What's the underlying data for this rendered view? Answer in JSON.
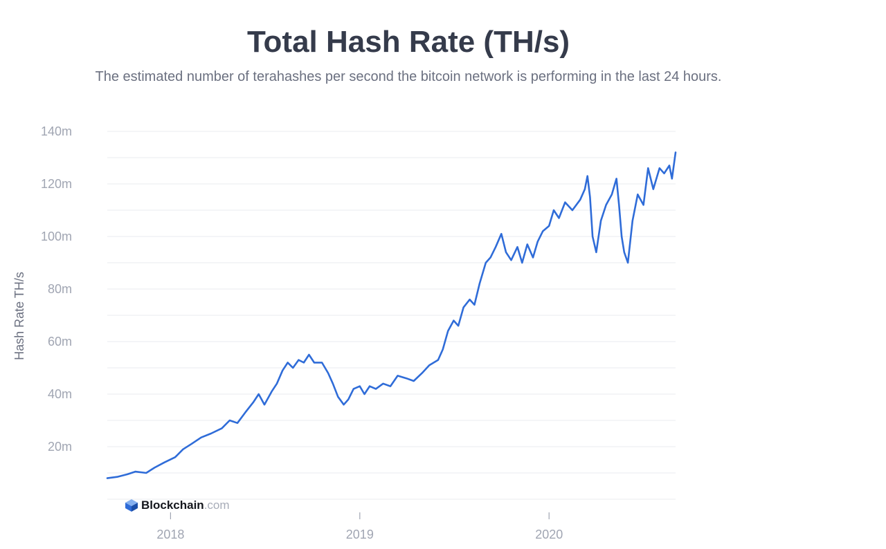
{
  "chart_data": {
    "type": "line",
    "title": "Total Hash Rate (TH/s)",
    "subtitle": "The estimated number of terahashes per second the bitcoin network is performing in the last 24 hours.",
    "ylabel": "Hash Rate TH/s",
    "xlabel": "",
    "ylim": [
      0,
      140
    ],
    "y_ticks": [
      20,
      40,
      60,
      80,
      100,
      120,
      140
    ],
    "y_tick_labels": [
      "20m",
      "40m",
      "60m",
      "80m",
      "100m",
      "120m",
      "140m"
    ],
    "x_ticks": [
      "2018-01-01",
      "2019-01-01",
      "2020-01-01"
    ],
    "x_tick_labels": [
      "2018",
      "2019",
      "2020"
    ],
    "xlim": [
      "2017-09-01",
      "2020-09-01"
    ],
    "grid": "horizontal",
    "line_color": "#2f6cd8",
    "series": [
      {
        "name": "",
        "points": [
          [
            "2017-09-01",
            8
          ],
          [
            "2017-09-20",
            8.5
          ],
          [
            "2017-10-10",
            9.5
          ],
          [
            "2017-10-25",
            10.5
          ],
          [
            "2017-11-15",
            10
          ],
          [
            "2017-12-01",
            12
          ],
          [
            "2017-12-20",
            14
          ],
          [
            "2018-01-10",
            16
          ],
          [
            "2018-01-25",
            19
          ],
          [
            "2018-02-10",
            21
          ],
          [
            "2018-03-01",
            23.5
          ],
          [
            "2018-03-20",
            25
          ],
          [
            "2018-04-10",
            27
          ],
          [
            "2018-04-25",
            30
          ],
          [
            "2018-05-10",
            29
          ],
          [
            "2018-05-25",
            33
          ],
          [
            "2018-06-10",
            37
          ],
          [
            "2018-06-20",
            40
          ],
          [
            "2018-07-01",
            36
          ],
          [
            "2018-07-15",
            41
          ],
          [
            "2018-07-25",
            44
          ],
          [
            "2018-08-05",
            49
          ],
          [
            "2018-08-15",
            52
          ],
          [
            "2018-08-25",
            50
          ],
          [
            "2018-09-05",
            53
          ],
          [
            "2018-09-15",
            52
          ],
          [
            "2018-09-25",
            55
          ],
          [
            "2018-10-05",
            52
          ],
          [
            "2018-10-20",
            52
          ],
          [
            "2018-11-01",
            48
          ],
          [
            "2018-11-10",
            44
          ],
          [
            "2018-11-20",
            39
          ],
          [
            "2018-12-01",
            36
          ],
          [
            "2018-12-10",
            38
          ],
          [
            "2018-12-20",
            42
          ],
          [
            "2019-01-01",
            43
          ],
          [
            "2019-01-10",
            40
          ],
          [
            "2019-01-20",
            43
          ],
          [
            "2019-02-01",
            42
          ],
          [
            "2019-02-15",
            44
          ],
          [
            "2019-03-01",
            43
          ],
          [
            "2019-03-15",
            47
          ],
          [
            "2019-04-01",
            46
          ],
          [
            "2019-04-15",
            45
          ],
          [
            "2019-05-01",
            48
          ],
          [
            "2019-05-15",
            51
          ],
          [
            "2019-06-01",
            53
          ],
          [
            "2019-06-10",
            57
          ],
          [
            "2019-06-20",
            64
          ],
          [
            "2019-07-01",
            68
          ],
          [
            "2019-07-10",
            66
          ],
          [
            "2019-07-20",
            73
          ],
          [
            "2019-08-01",
            76
          ],
          [
            "2019-08-10",
            74
          ],
          [
            "2019-08-20",
            82
          ],
          [
            "2019-09-01",
            90
          ],
          [
            "2019-09-10",
            92
          ],
          [
            "2019-09-20",
            96
          ],
          [
            "2019-10-01",
            101
          ],
          [
            "2019-10-10",
            94
          ],
          [
            "2019-10-20",
            91
          ],
          [
            "2019-11-01",
            96
          ],
          [
            "2019-11-10",
            90
          ],
          [
            "2019-11-20",
            97
          ],
          [
            "2019-12-01",
            92
          ],
          [
            "2019-12-10",
            98
          ],
          [
            "2019-12-20",
            102
          ],
          [
            "2020-01-01",
            104
          ],
          [
            "2020-01-10",
            110
          ],
          [
            "2020-01-20",
            107
          ],
          [
            "2020-02-01",
            113
          ],
          [
            "2020-02-15",
            110
          ],
          [
            "2020-03-01",
            114
          ],
          [
            "2020-03-10",
            118
          ],
          [
            "2020-03-15",
            123
          ],
          [
            "2020-03-20",
            115
          ],
          [
            "2020-03-25",
            100
          ],
          [
            "2020-04-01",
            94
          ],
          [
            "2020-04-10",
            106
          ],
          [
            "2020-04-20",
            112
          ],
          [
            "2020-05-01",
            116
          ],
          [
            "2020-05-10",
            122
          ],
          [
            "2020-05-15",
            112
          ],
          [
            "2020-05-20",
            100
          ],
          [
            "2020-05-25",
            94
          ],
          [
            "2020-06-01",
            90
          ],
          [
            "2020-06-10",
            106
          ],
          [
            "2020-06-20",
            116
          ],
          [
            "2020-07-01",
            112
          ],
          [
            "2020-07-10",
            126
          ],
          [
            "2020-07-20",
            118
          ],
          [
            "2020-08-01",
            126
          ],
          [
            "2020-08-10",
            124
          ],
          [
            "2020-08-20",
            127
          ],
          [
            "2020-08-25",
            122
          ],
          [
            "2020-09-01",
            132
          ]
        ]
      }
    ]
  },
  "branding": {
    "name": "Blockchain",
    "suffix": ".com",
    "logo_icon": "blockchain-cube-icon"
  }
}
